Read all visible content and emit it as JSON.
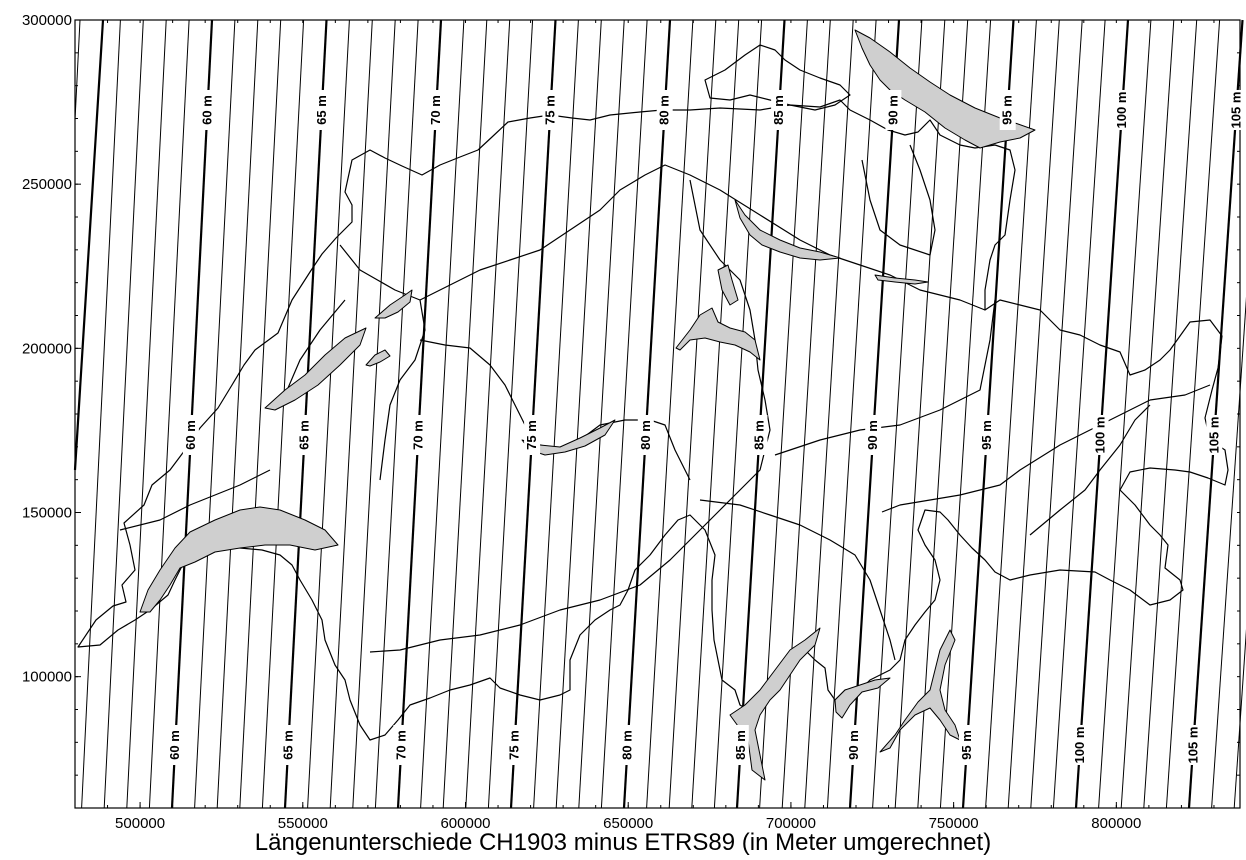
{
  "caption": "Längenunterschiede CH1903 minus ETRS89 (in Meter umgerechnet)",
  "colors": {
    "lake_fill": "#cfcfcf",
    "line": "#000000",
    "background": "#ffffff"
  },
  "chart_data": {
    "type": "map-isolines",
    "xlabel": "Längenunterschiede CH1903 minus ETRS89 (in Meter umgerechnet)",
    "xlim": [
      480000,
      838000
    ],
    "ylim": [
      60000,
      300000
    ],
    "x_ticks": [
      "500000",
      "550000",
      "600000",
      "650000",
      "700000",
      "750000",
      "800000"
    ],
    "y_ticks": [
      "100000",
      "150000",
      "200000",
      "250000",
      "300000"
    ],
    "isoline_step_m": 1,
    "labeled_isolines": [
      "60 m",
      "65 m",
      "70 m",
      "75 m",
      "80 m",
      "85 m",
      "90 m",
      "95 m",
      "100 m",
      "105 m"
    ],
    "labels_top": [
      "60 m",
      "65 m",
      "70 m",
      "75 m",
      "80 m",
      "85 m",
      "90 m",
      "95 m",
      "100 m",
      "105 m"
    ],
    "labels_middle": [
      "60 m",
      "65 m",
      "70 m",
      "75 m",
      "80 m",
      "85 m",
      "90 m",
      "95 m",
      "100 m",
      "105 m"
    ],
    "labels_bottom": [
      "60 m",
      "65 m",
      "70 m",
      "75 m",
      "80 m",
      "85 m",
      "90 m",
      "95 m",
      "100 m",
      "105 m"
    ]
  }
}
